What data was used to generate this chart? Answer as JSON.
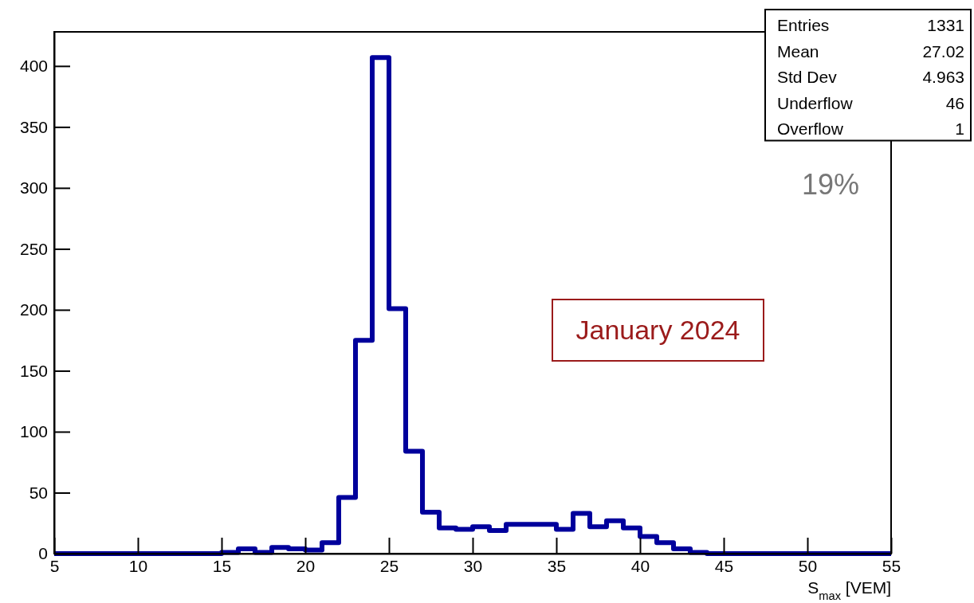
{
  "chart_data": {
    "type": "histogram",
    "xlabel": "S$_{max}$ [VEM]",
    "bins": [
      5,
      6,
      7,
      8,
      9,
      10,
      11,
      12,
      13,
      14,
      15,
      16,
      17,
      18,
      19,
      20,
      21,
      22,
      23,
      24,
      25,
      26,
      27,
      28,
      29,
      30,
      31,
      32,
      33,
      34,
      35,
      36,
      37,
      38,
      39,
      40,
      41,
      42,
      43,
      44,
      45,
      46,
      47,
      48,
      49,
      50,
      51,
      52,
      53,
      54,
      55
    ],
    "values": [
      0,
      0,
      0,
      0,
      0,
      0,
      0,
      0,
      0,
      0,
      1,
      4,
      1,
      5,
      4,
      3,
      9,
      46,
      175,
      407,
      201,
      84,
      34,
      21,
      20,
      22,
      19,
      24,
      24,
      24,
      20,
      33,
      22,
      27,
      21,
      14,
      9,
      4,
      1,
      0,
      0,
      0,
      0,
      0,
      0,
      0,
      0,
      0,
      0,
      0
    ],
    "color": "#00009c",
    "xlim": [
      5,
      55
    ],
    "xticks": [
      5,
      10,
      15,
      20,
      25,
      30,
      35,
      40,
      45,
      50,
      55
    ],
    "ylim": [
      0,
      428
    ],
    "yticks": [
      0,
      50,
      100,
      150,
      200,
      250,
      300,
      350,
      400
    ],
    "annotations": [
      "Entries",
      "1331",
      "Mean",
      "27.02",
      "Std Dev",
      "4.963",
      "Underflow",
      "46",
      "Overflow",
      "1",
      "19%",
      "January 2024"
    ]
  }
}
